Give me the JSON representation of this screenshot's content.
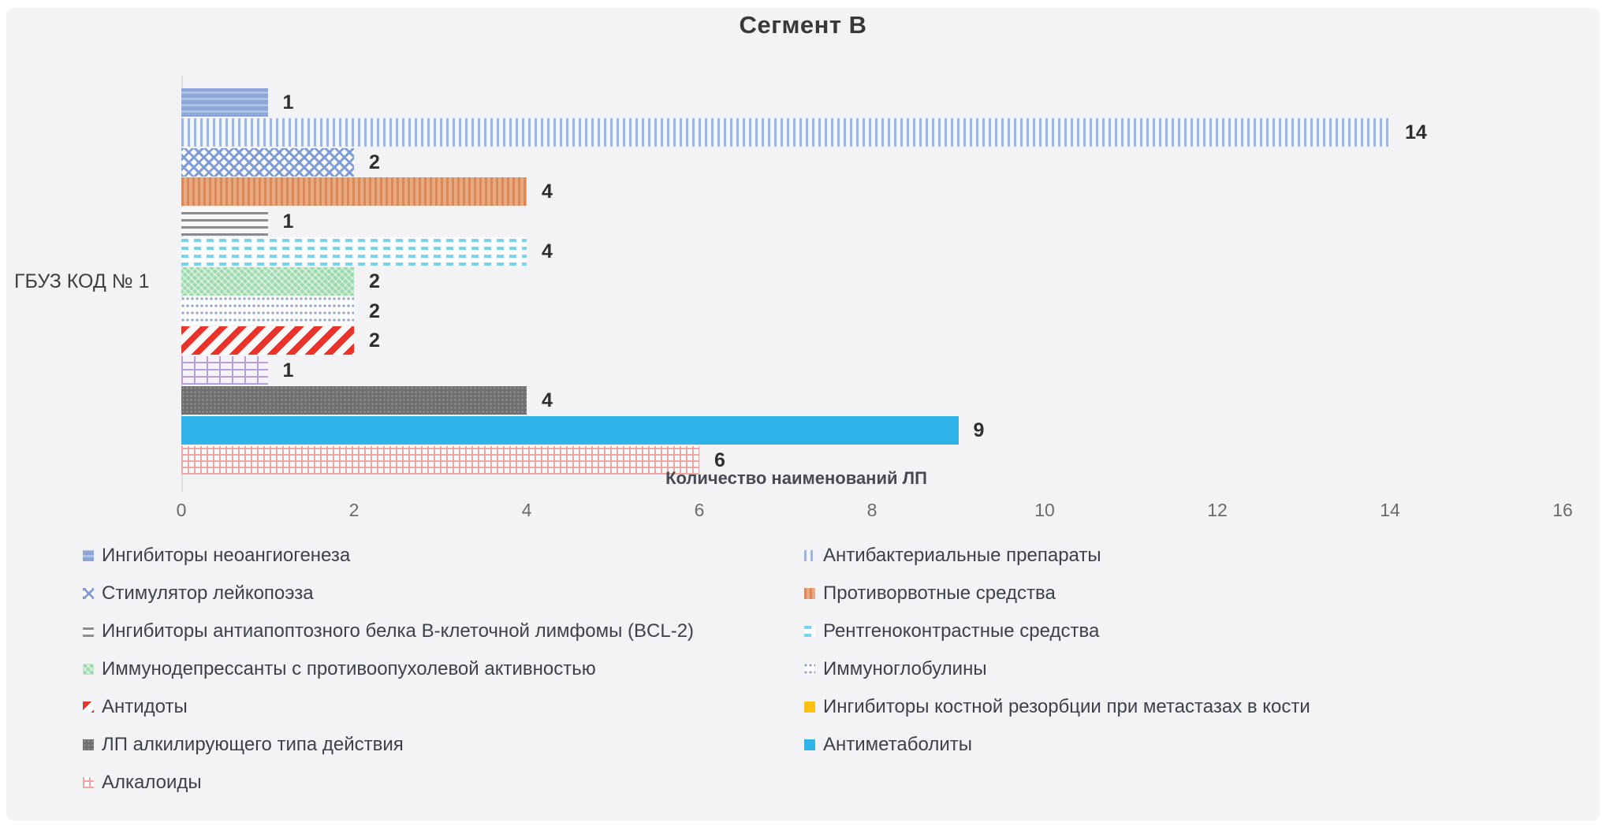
{
  "title": "Сегмент В",
  "chart_data": {
    "type": "bar",
    "orientation": "horizontal",
    "category": "ГБУЗ КОД № 1",
    "xlabel": "Количество наименований ЛП",
    "axis": {
      "min": 0,
      "max": 16,
      "step": 2
    },
    "grid": false,
    "legend_position": "bottom-two-columns",
    "series": [
      {
        "name": "Ингибиторы неоангиогенеза",
        "value": 1,
        "pattern": "blue-hstripes",
        "color": "#8CA5DA"
      },
      {
        "name": "Антибактериальные препараты",
        "value": 14,
        "pattern": "blue-vlines",
        "color": "#9FB4DF"
      },
      {
        "name": "Стимулятор лейкопоэза",
        "value": 2,
        "pattern": "blue-weave",
        "color": "#7A99D4"
      },
      {
        "name": "Противорвотные средства",
        "value": 4,
        "pattern": "orange-vlines",
        "color": "#E09468"
      },
      {
        "name": "Ингибиторы антиапоптозного белка B-клеточной лимфомы (BCL-2)",
        "value": 1,
        "pattern": "gray-hlines",
        "color": "#8A8D91"
      },
      {
        "name": "Рентгеноконтрастные средства",
        "value": 4,
        "pattern": "cyan-dashes",
        "color": "#7BD3EC"
      },
      {
        "name": "Иммунодепрессанты с противоопухолевой активностью",
        "value": 2,
        "pattern": "green-weave",
        "color": "#9CD9AD"
      },
      {
        "name": "Иммуноглобулины",
        "value": 2,
        "pattern": "dot-rows",
        "color": "#99A5CA"
      },
      {
        "name": "Антидоты",
        "value": 2,
        "pattern": "red-diag",
        "color": "#E7352B"
      },
      {
        "name": "Ингибиторы костной резорбции при метастазах в кости",
        "value": 1,
        "pattern": "purple-brick",
        "color": "#B79FDE",
        "legend_pattern": "solid-yellow",
        "legend_color": "#FFC013"
      },
      {
        "name": "ЛП алкилирующего типа действия",
        "value": 4,
        "pattern": "darkgray-texture",
        "color": "#6F6F70"
      },
      {
        "name": "Антиметаболиты",
        "value": 9,
        "pattern": "solid-cyan",
        "color": "#2FB3E8"
      },
      {
        "name": "Алкалоиды",
        "value": 6,
        "pattern": "pink-grid",
        "color": "#F2A6A4"
      }
    ]
  },
  "colors": {
    "panel_background": "#F3F3F5",
    "title_text": "#383838",
    "value_label_text": "#2E2E2E",
    "tick_text": "#6B6B6E",
    "legend_text": "#3C414B",
    "axis_line": "#DEDEE2"
  }
}
